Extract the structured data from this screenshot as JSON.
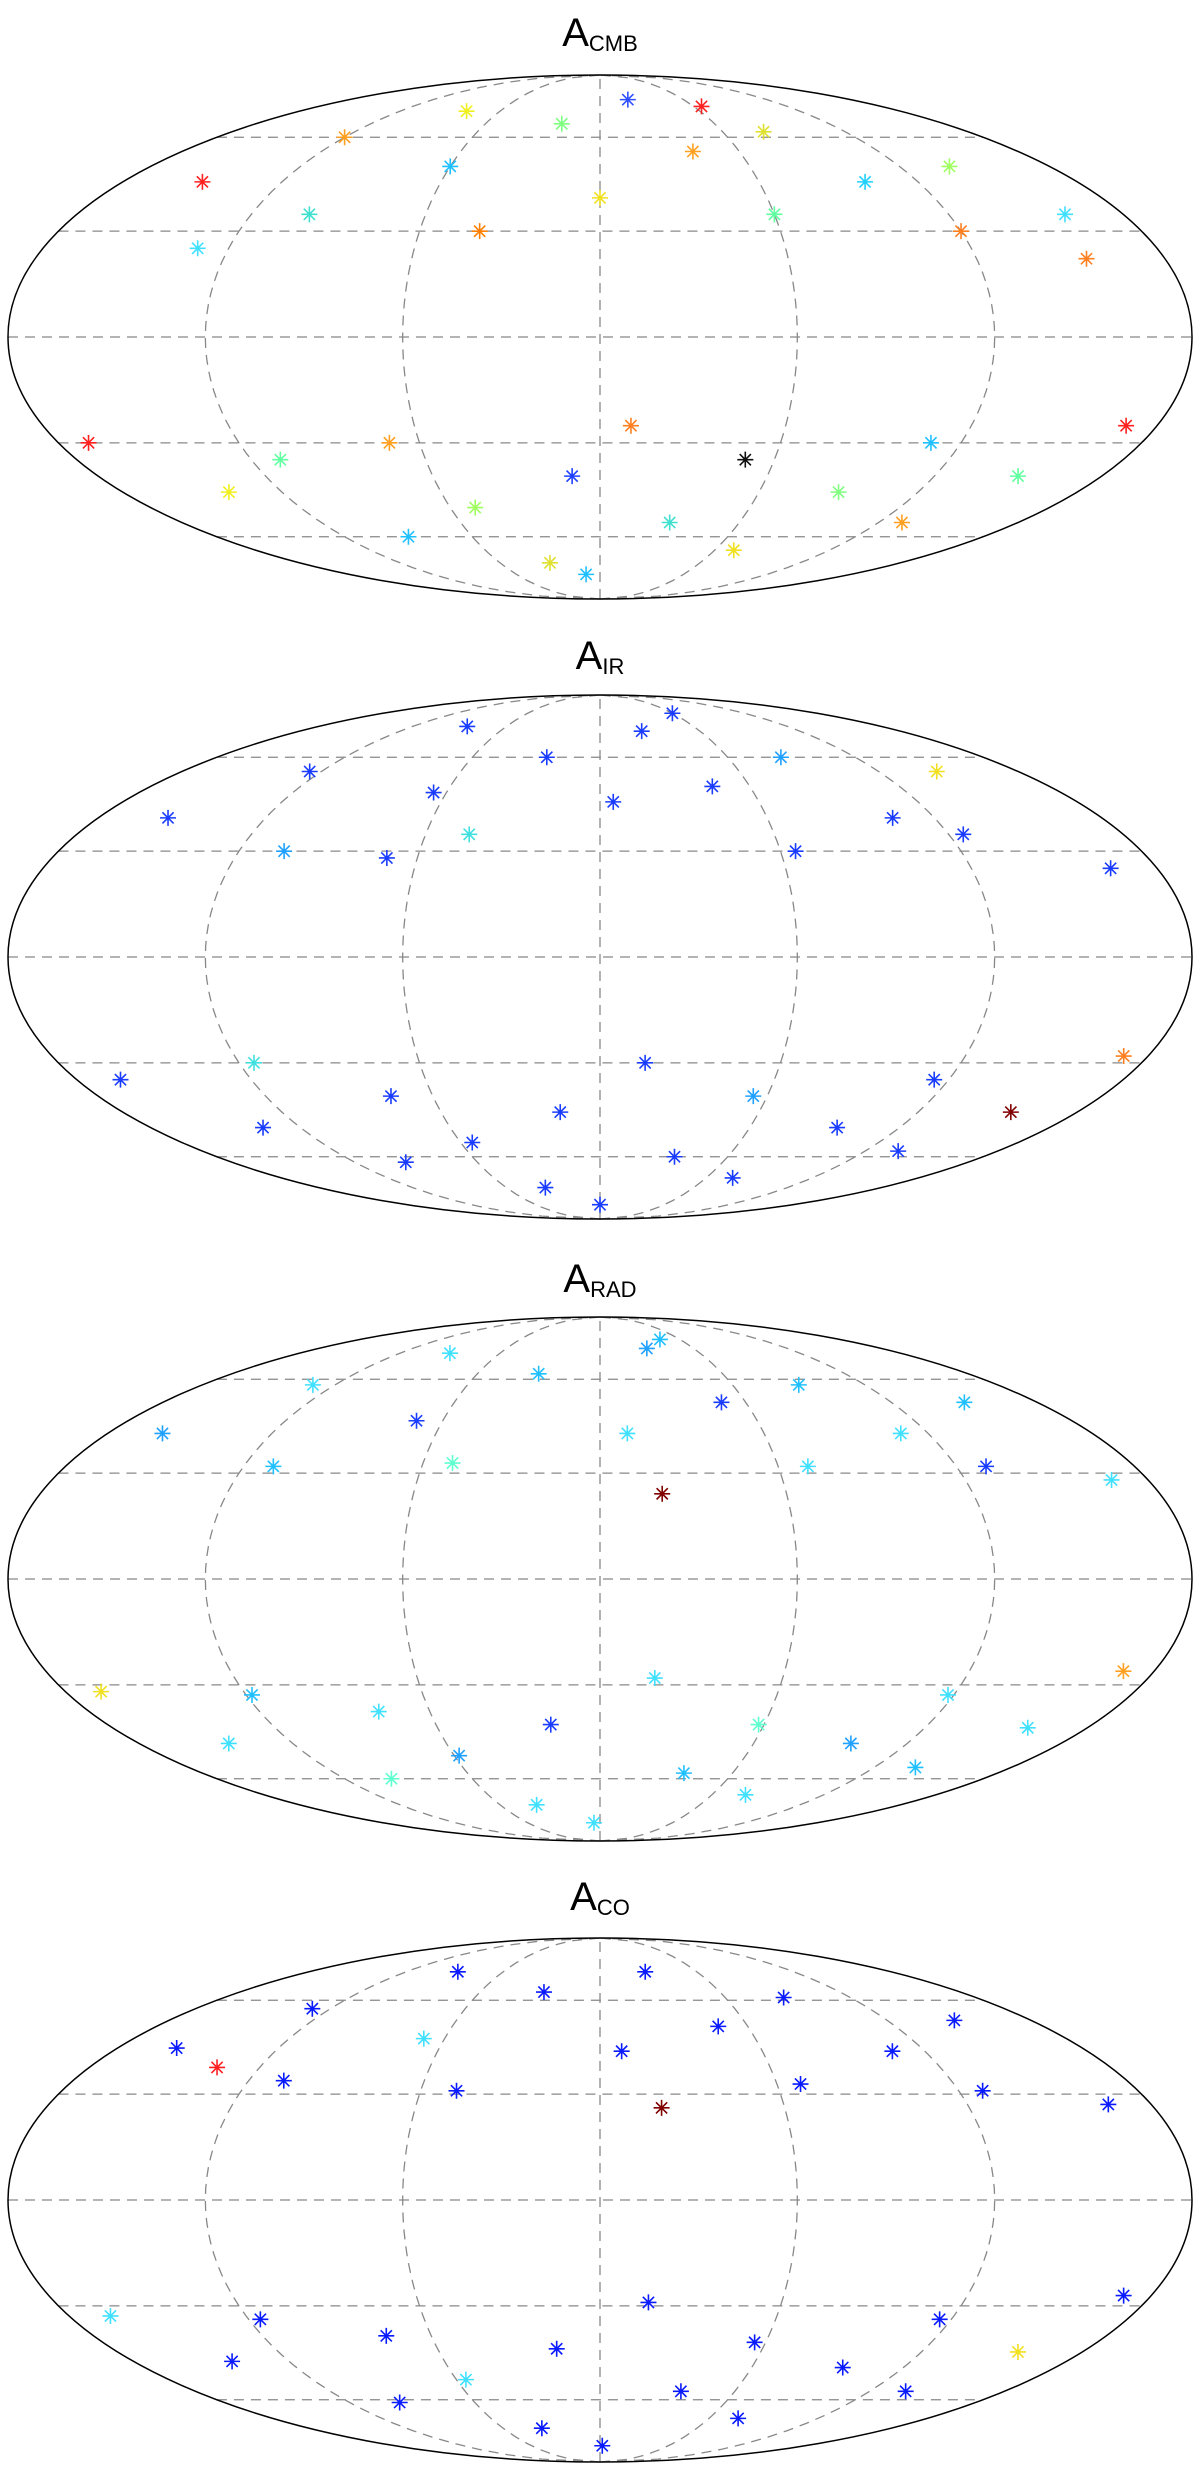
{
  "chart_data": [
    {
      "type": "scatter",
      "title": "A",
      "title_sub": "CMB",
      "projection": "mollweide",
      "xlim": [
        -180,
        180
      ],
      "ylim": [
        -90,
        90
      ],
      "xticks": [
        -120,
        -60,
        0,
        60,
        120
      ],
      "yticks": [
        -60,
        -30,
        0,
        30,
        60
      ],
      "grid": true,
      "x": [
        -150,
        -120,
        -100,
        -80,
        -60,
        -40,
        -20,
        0,
        20,
        40,
        60,
        80,
        100,
        120,
        140,
        160,
        -170,
        -140,
        -110,
        -90,
        -70,
        -50,
        -30,
        -10,
        10,
        30,
        50,
        70,
        90,
        110,
        130,
        150,
        170,
        -130,
        -10,
        65,
        155
      ],
      "y": [
        45,
        60,
        35,
        70,
        50,
        30,
        65,
        40,
        75,
        55,
        35,
        62,
        45,
        30,
        50,
        35,
        -30,
        -45,
        -35,
        -60,
        -30,
        -50,
        -70,
        -40,
        -25,
        -55,
        -35,
        -65,
        -45,
        -30,
        -55,
        -40,
        -25,
        25,
        -75,
        72,
        22
      ],
      "colors": [
        "#ff2020",
        "#ffa020",
        "#40e0d0",
        "#f0f020",
        "#20c0ff",
        "#ff8000",
        "#80ff80",
        "#f0e020",
        "#3050ff",
        "#ffa020",
        "#60ffa0",
        "#e0e030",
        "#20d0ff",
        "#ff8020",
        "#a0ff60",
        "#40e0ff",
        "#ff2020",
        "#f0f020",
        "#60ffa0",
        "#20c0ff",
        "#ffa020",
        "#a0ff60",
        "#e0e030",
        "#2040ff",
        "#ff8020",
        "#40e0d0",
        "#101010",
        "#f0e020",
        "#80ff80",
        "#20c0ff",
        "#ffa020",
        "#60ffa0",
        "#ff2020",
        "#40e0ff",
        "#20c0ff",
        "#ff2020",
        "#ff8020"
      ]
    },
    {
      "type": "scatter",
      "title": "A",
      "title_sub": "IR",
      "projection": "mollweide",
      "xlim": [
        -180,
        180
      ],
      "ylim": [
        -90,
        90
      ],
      "xticks": [
        -120,
        -60,
        0,
        60,
        120
      ],
      "yticks": [
        -60,
        -30,
        0,
        30,
        60
      ],
      "grid": true,
      "x": [
        -155,
        -125,
        -105,
        -85,
        -65,
        -45,
        -25,
        5,
        25,
        45,
        65,
        85,
        105,
        125,
        145,
        165,
        -165,
        -135,
        -115,
        -95,
        -75,
        -55,
        -35,
        -15,
        15,
        35,
        55,
        75,
        95,
        115,
        135,
        155,
        172,
        -70,
        0,
        60
      ],
      "y": [
        40,
        55,
        30,
        72,
        48,
        35,
        60,
        45,
        70,
        50,
        30,
        60,
        40,
        35,
        55,
        25,
        -35,
        -50,
        -30,
        -62,
        -40,
        -55,
        -72,
        -45,
        -30,
        -60,
        -40,
        -68,
        -50,
        -35,
        -58,
        -45,
        -28,
        28,
        -80,
        78
      ],
      "colors": [
        "#1a3cff",
        "#1a3cff",
        "#20a0ff",
        "#1a3cff",
        "#1a3cff",
        "#40e0e0",
        "#1a3cff",
        "#1a3cff",
        "#1a3cff",
        "#1a3cff",
        "#1a3cff",
        "#20a0ff",
        "#1a3cff",
        "#1a3cff",
        "#f0e020",
        "#1a3cff",
        "#1a3cff",
        "#1a3cff",
        "#40e0e0",
        "#1a3cff",
        "#1a3cff",
        "#1a3cff",
        "#1a3cff",
        "#1a3cff",
        "#1a3cff",
        "#1a3cff",
        "#20a0ff",
        "#1a3cff",
        "#1a3cff",
        "#1a3cff",
        "#1a3cff",
        "#800000",
        "#ff8020",
        "#1a3cff",
        "#1a3cff",
        "#1a3cff"
      ]
    },
    {
      "type": "scatter",
      "title": "A",
      "title_sub": "RAD",
      "projection": "mollweide",
      "xlim": [
        -180,
        180
      ],
      "ylim": [
        -90,
        90
      ],
      "xticks": [
        -120,
        -60,
        0,
        60,
        120
      ],
      "yticks": [
        -60,
        -30,
        0,
        30,
        60
      ],
      "grid": true,
      "x": [
        -160,
        -130,
        -110,
        -90,
        -70,
        -50,
        -30,
        10,
        30,
        50,
        70,
        90,
        110,
        130,
        150,
        168,
        -168,
        -145,
        -118,
        -98,
        -78,
        -58,
        -38,
        -18,
        18,
        38,
        58,
        78,
        98,
        118,
        138,
        158,
        170,
        20,
        -5,
        45
      ],
      "y": [
        42,
        58,
        32,
        70,
        46,
        33,
        62,
        42,
        72,
        52,
        32,
        58,
        42,
        32,
        52,
        28,
        -32,
        -48,
        -33,
        -60,
        -38,
        -52,
        -70,
        -42,
        -28,
        -58,
        -42,
        -66,
        -48,
        -33,
        -56,
        -43,
        -26,
        24,
        -78,
        76
      ],
      "colors": [
        "#20a0ff",
        "#40e0ff",
        "#20c0ff",
        "#40e0ff",
        "#1a3cff",
        "#60ffd0",
        "#20c0ff",
        "#40e0ff",
        "#20a0ff",
        "#1a3cff",
        "#40e0ff",
        "#20c0ff",
        "#40e0ff",
        "#1a3cff",
        "#20c0ff",
        "#40e0ff",
        "#f0e020",
        "#40e0ff",
        "#20c0ff",
        "#60ffd0",
        "#40e0ff",
        "#20a0ff",
        "#40e0ff",
        "#1a3cff",
        "#40e0ff",
        "#20c0ff",
        "#60ffd0",
        "#40e0ff",
        "#20a0ff",
        "#40e0ff",
        "#20c0ff",
        "#40e0ff",
        "#ffa020",
        "#800000",
        "#40e0ff",
        "#20c0ff"
      ]
    },
    {
      "type": "scatter",
      "title": "A",
      "title_sub": "CO",
      "projection": "mollweide",
      "xlim": [
        -180,
        180
      ],
      "ylim": [
        -90,
        90
      ],
      "xticks": [
        -120,
        -60,
        0,
        60,
        120
      ],
      "yticks": [
        -60,
        -30,
        0,
        30,
        60
      ],
      "grid": true,
      "x": [
        -158,
        -128,
        -108,
        -88,
        -68,
        -48,
        -28,
        8,
        28,
        48,
        68,
        88,
        108,
        128,
        148,
        166,
        -166,
        -142,
        -116,
        -96,
        -76,
        -56,
        -36,
        -16,
        16,
        36,
        56,
        76,
        96,
        116,
        136,
        156,
        171,
        20,
        -135,
        2
      ],
      "y": [
        44,
        57,
        34,
        71,
        47,
        31,
        63,
        43,
        71,
        51,
        33,
        61,
        43,
        31,
        53,
        27,
        -33,
        -47,
        -34,
        -61,
        -39,
        -53,
        -71,
        -43,
        -29,
        -57,
        -41,
        -67,
        -49,
        -34,
        -57,
        -44,
        -27,
        26,
        38,
        -79
      ],
      "colors": [
        "#0a1aff",
        "#0a1aff",
        "#0a1aff",
        "#0a1aff",
        "#40e0ff",
        "#0a1aff",
        "#0a1aff",
        "#0a1aff",
        "#0a1aff",
        "#0a1aff",
        "#0a1aff",
        "#0a1aff",
        "#0a1aff",
        "#0a1aff",
        "#0a1aff",
        "#0a1aff",
        "#40e0ff",
        "#0a1aff",
        "#0a1aff",
        "#0a1aff",
        "#0a1aff",
        "#40e0ff",
        "#0a1aff",
        "#0a1aff",
        "#0a1aff",
        "#0a1aff",
        "#0a1aff",
        "#0a1aff",
        "#0a1aff",
        "#0a1aff",
        "#0a1aff",
        "#f0e020",
        "#0a1aff",
        "#800000",
        "#ff2020",
        "#0a1aff"
      ]
    }
  ]
}
